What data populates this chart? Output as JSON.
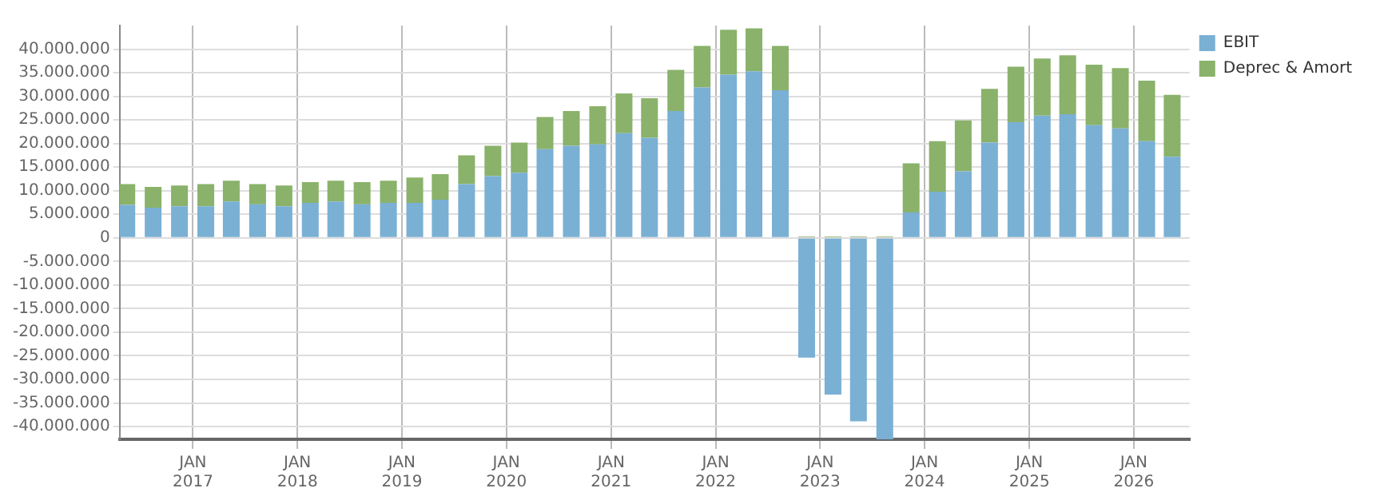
{
  "chart_data": {
    "type": "bar",
    "stacked": true,
    "x": [
      "2016-05-15",
      "2016-08-15",
      "2016-11-15",
      "2017-02-15",
      "2017-05-15",
      "2017-08-15",
      "2017-11-15",
      "2018-02-15",
      "2018-05-15",
      "2018-08-15",
      "2018-11-15",
      "2019-02-15",
      "2019-05-15",
      "2019-08-15",
      "2019-11-15",
      "2020-02-15",
      "2020-05-15",
      "2020-08-15",
      "2020-11-15",
      "2021-02-15",
      "2021-05-15",
      "2021-08-15",
      "2021-11-15",
      "2022-02-15",
      "2022-05-15",
      "2022-08-15",
      "2022-11-15",
      "2023-02-15",
      "2023-05-15",
      "2023-08-15",
      "2023-11-15",
      "2024-02-15",
      "2024-05-15",
      "2024-08-15",
      "2024-11-15",
      "2025-02-15",
      "2025-05-15",
      "2025-08-15",
      "2025-11-15",
      "2026-02-15",
      "2026-05-15"
    ],
    "series": [
      {
        "name": "EBIT",
        "color": "#7ab0d4",
        "values": [
          7000000,
          6400000,
          6700000,
          6700000,
          7700000,
          7100000,
          6700000,
          7400000,
          7700000,
          7100000,
          7400000,
          7400000,
          8100000,
          11400000,
          13100000,
          13800000,
          18800000,
          19500000,
          19800000,
          22200000,
          21200000,
          26900000,
          31900000,
          34600000,
          35300000,
          31300000,
          -25400000,
          -33200000,
          -38900000,
          -42700000,
          5400000,
          9800000,
          14100000,
          20200000,
          24500000,
          25900000,
          26200000,
          23900000,
          23200000,
          20500000,
          17200000
        ]
      },
      {
        "name": "Deprec & Amort",
        "color": "#8ab26a",
        "values": [
          4400000,
          4400000,
          4400000,
          4700000,
          4400000,
          4300000,
          4400000,
          4400000,
          4400000,
          4700000,
          4700000,
          5400000,
          5400000,
          6100000,
          6400000,
          6400000,
          6800000,
          7400000,
          8100000,
          8400000,
          8400000,
          8700000,
          8800000,
          9500000,
          9100000,
          9400000,
          300000,
          300000,
          300000,
          300000,
          10400000,
          10700000,
          10800000,
          11400000,
          11800000,
          12100000,
          12500000,
          12800000,
          12800000,
          12800000,
          13100000
        ]
      }
    ],
    "xlim": [
      "2016-04-20",
      "2026-07-15"
    ],
    "xticks": [
      {
        "value": "2017-01-01",
        "label": "JAN 2017"
      },
      {
        "value": "2018-01-01",
        "label": "JAN 2018"
      },
      {
        "value": "2019-01-01",
        "label": "JAN 2019"
      },
      {
        "value": "2020-01-01",
        "label": "JAN 2020"
      },
      {
        "value": "2021-01-01",
        "label": "JAN 2021"
      },
      {
        "value": "2022-01-01",
        "label": "JAN 2022"
      },
      {
        "value": "2023-01-01",
        "label": "JAN 2023"
      },
      {
        "value": "2024-01-01",
        "label": "JAN 2024"
      },
      {
        "value": "2025-01-01",
        "label": "JAN 2025"
      },
      {
        "value": "2026-01-01",
        "label": "JAN 2026"
      }
    ],
    "ylim": [
      -42700000,
      45000000
    ],
    "yticks": [
      {
        "value": -40000000,
        "label": "-40.000.000"
      },
      {
        "value": -35000000,
        "label": "-35.000.000"
      },
      {
        "value": -30000000,
        "label": "-30.000.000"
      },
      {
        "value": -25000000,
        "label": "-25.000.000"
      },
      {
        "value": -20000000,
        "label": "-20.000.000"
      },
      {
        "value": -15000000,
        "label": "-15.000.000"
      },
      {
        "value": -10000000,
        "label": "-10.000.000"
      },
      {
        "value": -5000000,
        "label": "-5.000.000"
      },
      0,
      {
        "value": 5000000,
        "label": "5.000.000"
      },
      {
        "value": 10000000,
        "label": "10.000.000"
      },
      {
        "value": 15000000,
        "label": "15.000.000"
      },
      {
        "value": 20000000,
        "label": "20.000.000"
      },
      {
        "value": 25000000,
        "label": "25.000.000"
      },
      {
        "value": 30000000,
        "label": "30.000.000"
      },
      {
        "value": 35000000,
        "label": "35.000.000"
      },
      {
        "value": 40000000,
        "label": "40.000.000"
      }
    ],
    "grid": true,
    "legend": "top right"
  }
}
